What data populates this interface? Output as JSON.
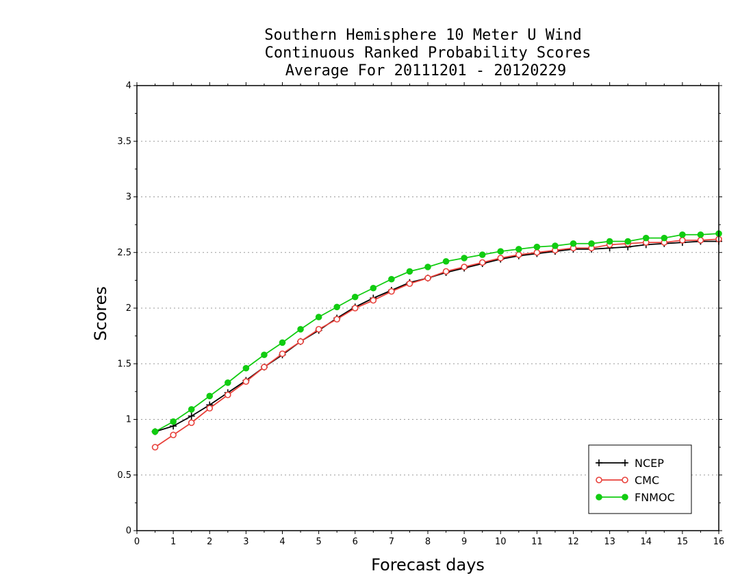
{
  "chart_data": {
    "type": "line",
    "title": [
      "Southern Hemisphere 10 Meter U Wind",
      "Continuous Ranked Probability Scores",
      "Average For 20111201 - 20120229"
    ],
    "xlabel": "Forecast days",
    "ylabel": "Scores",
    "xlim": [
      0,
      16
    ],
    "ylim": [
      0,
      4
    ],
    "xticks": [
      0,
      1,
      2,
      3,
      4,
      5,
      6,
      7,
      8,
      9,
      10,
      11,
      12,
      13,
      14,
      15,
      16
    ],
    "yticks": [
      0,
      0.5,
      1,
      1.5,
      2,
      2.5,
      3,
      3.5,
      4
    ],
    "ytick_labels": [
      "0",
      "0.5",
      "1",
      "1.5",
      "2",
      "2.5",
      "3",
      "3.5",
      "4"
    ],
    "grid": "horizontal dotted",
    "legend_position": "bottom-right",
    "x": [
      0.5,
      1,
      1.5,
      2,
      2.5,
      3,
      3.5,
      4,
      4.5,
      5,
      5.5,
      6,
      6.5,
      7,
      7.5,
      8,
      8.5,
      9,
      9.5,
      10,
      10.5,
      11,
      11.5,
      12,
      12.5,
      13,
      13.5,
      14,
      14.5,
      15,
      15.5,
      16
    ],
    "series": [
      {
        "name": "NCEP",
        "color": "#000000",
        "marker": "plus",
        "values": [
          0.89,
          0.94,
          1.03,
          1.13,
          1.24,
          1.35,
          1.47,
          1.58,
          1.7,
          1.8,
          1.91,
          2.01,
          2.09,
          2.16,
          2.23,
          2.27,
          2.32,
          2.36,
          2.4,
          2.44,
          2.47,
          2.49,
          2.51,
          2.53,
          2.53,
          2.54,
          2.55,
          2.57,
          2.58,
          2.59,
          2.6,
          2.6
        ]
      },
      {
        "name": "CMC",
        "color": "#e8403a",
        "marker": "open-circle",
        "values": [
          0.75,
          0.86,
          0.97,
          1.1,
          1.22,
          1.34,
          1.47,
          1.59,
          1.7,
          1.81,
          1.9,
          2.0,
          2.07,
          2.15,
          2.22,
          2.27,
          2.33,
          2.37,
          2.41,
          2.45,
          2.48,
          2.5,
          2.52,
          2.54,
          2.54,
          2.57,
          2.58,
          2.59,
          2.59,
          2.61,
          2.61,
          2.62
        ]
      },
      {
        "name": "FNMOC",
        "color": "#11cc11",
        "marker": "filled-circle",
        "values": [
          0.89,
          0.98,
          1.09,
          1.21,
          1.33,
          1.46,
          1.58,
          1.69,
          1.81,
          1.92,
          2.01,
          2.1,
          2.18,
          2.26,
          2.33,
          2.37,
          2.42,
          2.45,
          2.48,
          2.51,
          2.53,
          2.55,
          2.56,
          2.58,
          2.58,
          2.6,
          2.6,
          2.63,
          2.63,
          2.66,
          2.66,
          2.67
        ]
      }
    ]
  }
}
